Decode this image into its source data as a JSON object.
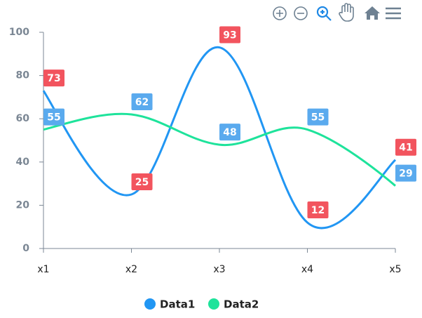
{
  "chart_data": {
    "type": "line",
    "categories": [
      "x1",
      "x2",
      "x3",
      "x4",
      "x5"
    ],
    "series": [
      {
        "name": "Data1",
        "color": "#2196f3",
        "label_color": "#f2545e",
        "values": [
          73,
          25,
          93,
          12,
          41
        ]
      },
      {
        "name": "Data2",
        "color": "#1ee39b",
        "label_color": "#5aaaee",
        "values": [
          55,
          62,
          48,
          55,
          29
        ]
      }
    ],
    "ylim": [
      0,
      100
    ],
    "yticks": [
      0,
      20,
      40,
      60,
      80,
      100
    ],
    "grid": false,
    "legend": "bottom"
  }
}
